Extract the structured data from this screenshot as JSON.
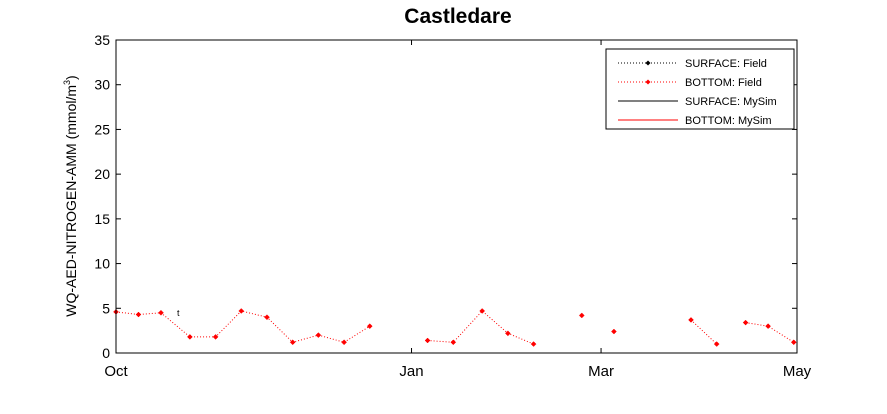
{
  "chart_data": {
    "type": "line",
    "title": "Castledare",
    "ylabel_main": "WQ-AED-NITROGEN-AMM (mmol/m",
    "ylabel_sup": "3",
    "ylabel_close": ")",
    "xlabel": "",
    "ylim": [
      0,
      35
    ],
    "y_ticks": [
      0,
      5,
      10,
      15,
      20,
      25,
      30,
      35
    ],
    "xlim": [
      "2000-10-01",
      "2001-05-01"
    ],
    "x_ticks": [
      {
        "label": "Oct",
        "date": "2000-10-01"
      },
      {
        "label": "Jan",
        "date": "2001-01-01"
      },
      {
        "label": "Mar",
        "date": "2001-03-01"
      },
      {
        "label": "May",
        "date": "2001-05-01"
      }
    ],
    "grid": false,
    "legend_position": "top-right",
    "colors": {
      "surface": "#000000",
      "bottom": "#ff0000"
    },
    "series": [
      {
        "name": "SURFACE: Field",
        "style": "dotted-marker",
        "color": "#000000",
        "points": []
      },
      {
        "name": "BOTTOM: Field",
        "style": "dotted-marker",
        "color": "#ff0000",
        "points": [
          {
            "x": "2000-10-01",
            "y": 4.6
          },
          {
            "x": "2000-10-08",
            "y": 4.3
          },
          {
            "x": "2000-10-15",
            "y": 4.5
          },
          {
            "x": "2000-10-24",
            "y": 1.8
          },
          {
            "x": "2000-11-01",
            "y": 1.8
          },
          {
            "x": "2000-11-09",
            "y": 4.7
          },
          {
            "x": "2000-11-17",
            "y": 4.0
          },
          {
            "x": "2000-11-25",
            "y": 1.2
          },
          {
            "x": "2000-12-03",
            "y": 2.0
          },
          {
            "x": "2000-12-11",
            "y": 1.2
          },
          {
            "x": "2000-12-19",
            "y": 3.0
          },
          {
            "x": null,
            "y": null
          },
          {
            "x": "2001-01-06",
            "y": 1.4
          },
          {
            "x": "2001-01-14",
            "y": 1.2
          },
          {
            "x": "2001-01-23",
            "y": 4.7
          },
          {
            "x": "2001-01-31",
            "y": 2.2
          },
          {
            "x": "2001-02-08",
            "y": 1.0
          },
          {
            "x": null,
            "y": null
          },
          {
            "x": "2001-02-23",
            "y": 4.2
          },
          {
            "x": null,
            "y": null
          },
          {
            "x": "2001-03-05",
            "y": 2.4
          },
          {
            "x": null,
            "y": null
          },
          {
            "x": "2001-03-29",
            "y": 3.7
          },
          {
            "x": "2001-04-06",
            "y": 1.0
          },
          {
            "x": null,
            "y": null
          },
          {
            "x": "2001-04-15",
            "y": 3.4
          },
          {
            "x": "2001-04-22",
            "y": 3.0
          },
          {
            "x": "2001-04-30",
            "y": 1.2
          }
        ]
      },
      {
        "name": "SURFACE: MySim",
        "style": "solid",
        "color": "#000000",
        "points": []
      },
      {
        "name": "BOTTOM: MySim",
        "style": "solid",
        "color": "#ff0000",
        "points": []
      }
    ],
    "annotations": [
      {
        "text": "t",
        "x": "2000-10-20",
        "y": 4.6
      }
    ]
  }
}
